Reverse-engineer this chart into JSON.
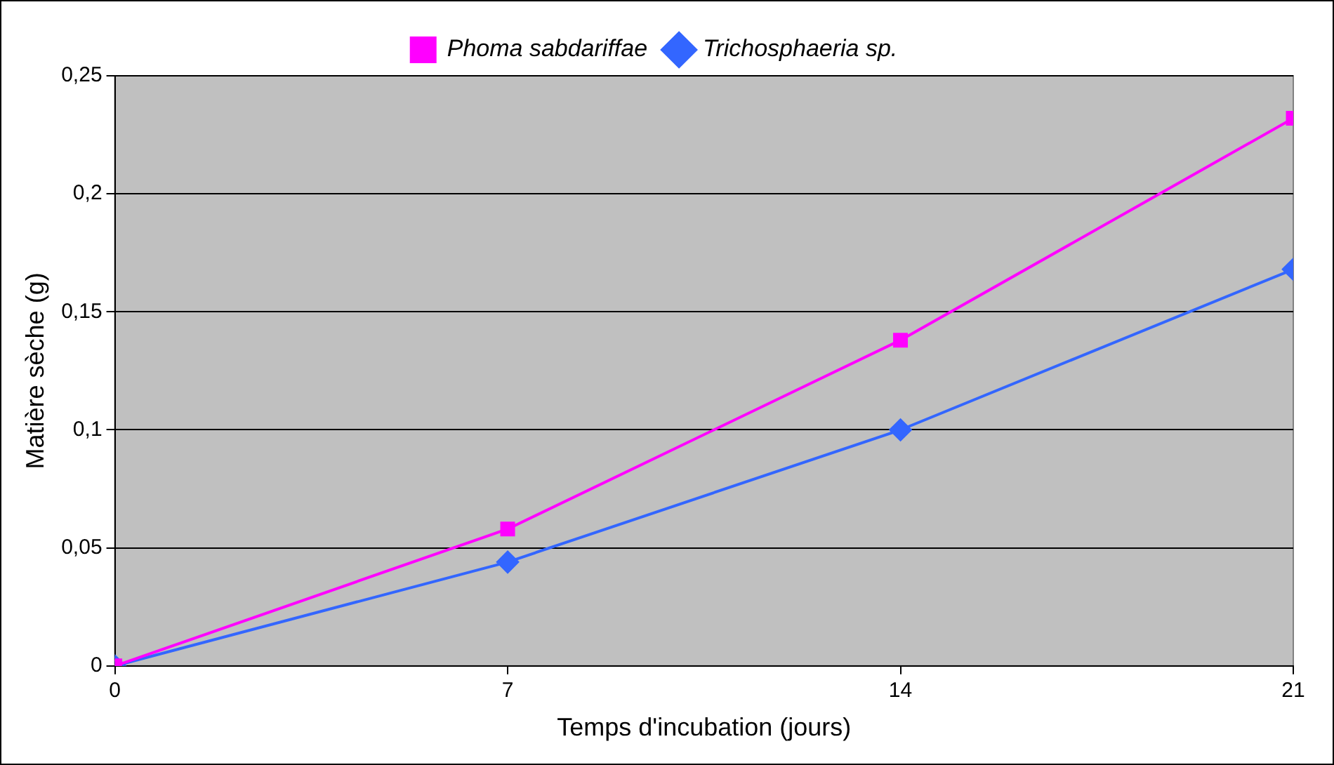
{
  "chart_data": {
    "type": "line",
    "xlabel": "Temps d'incubation (jours)",
    "ylabel": "Matière sèche (g)",
    "x": [
      0,
      7,
      14,
      21
    ],
    "series": [
      {
        "name": "Phoma sabdariffae",
        "color": "#ff00ff",
        "marker": "square",
        "values": [
          0,
          0.058,
          0.138,
          0.232
        ]
      },
      {
        "name": "Trichosphaeria sp.",
        "color": "#3366ff",
        "marker": "diamond",
        "values": [
          0,
          0.044,
          0.1,
          0.168
        ]
      }
    ],
    "xlim": [
      0,
      21
    ],
    "xticks": [
      0,
      7,
      14,
      21
    ],
    "ylim": [
      0,
      0.25
    ],
    "yticks": [
      0,
      {
        "value": 0.05,
        "label": "0,05"
      },
      {
        "value": 0.1,
        "label": "0,1"
      },
      {
        "value": 0.15,
        "label": "0,15"
      },
      {
        "value": 0.2,
        "label": "0,2"
      },
      {
        "value": 0.25,
        "label": "0,25"
      }
    ],
    "grid": "y",
    "legend": "top",
    "line_style": "solid"
  }
}
